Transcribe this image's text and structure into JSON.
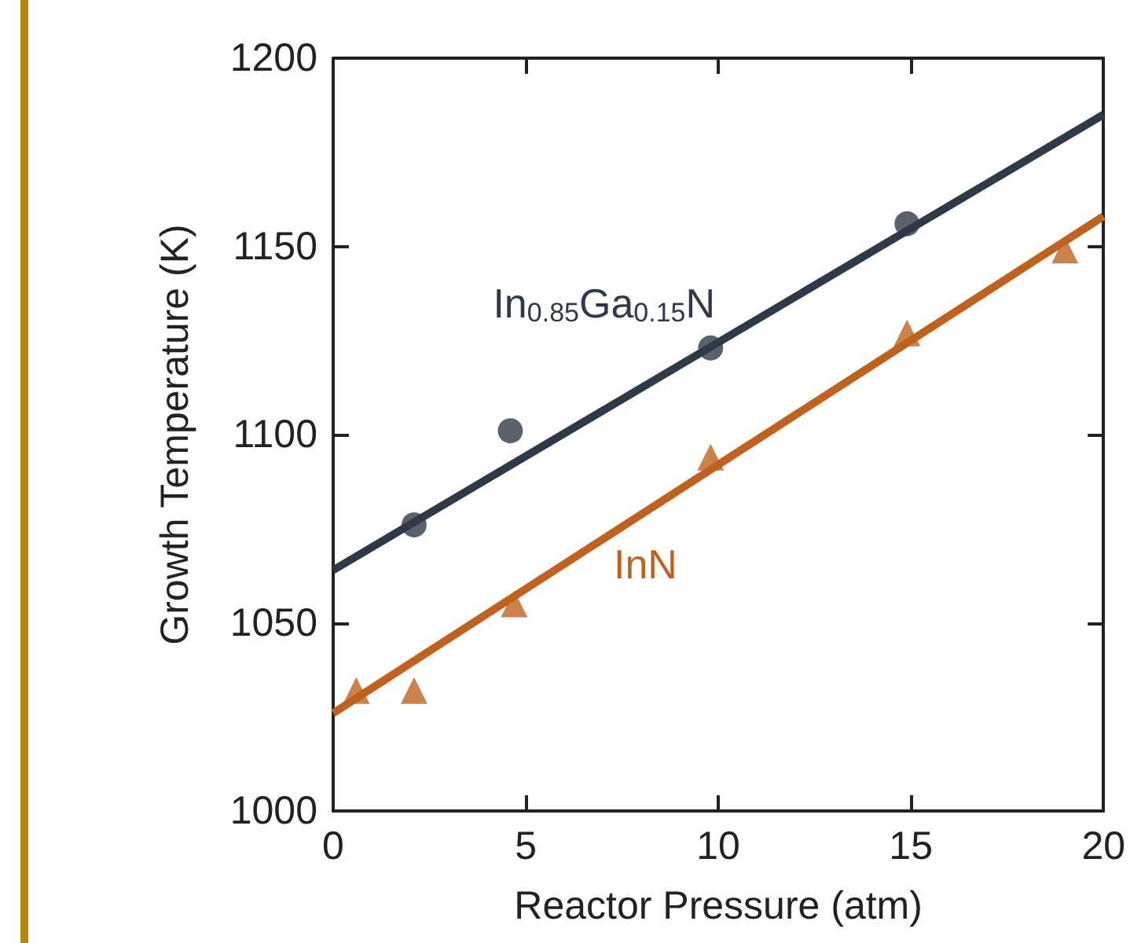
{
  "chart_data": {
    "type": "scatter",
    "xlabel": "Reactor Pressure (atm)",
    "ylabel": "Growth Temperature (K)",
    "xlim": [
      0,
      20
    ],
    "xticks": [
      0,
      5,
      10,
      15,
      20
    ],
    "ylim": [
      1000,
      1200
    ],
    "yticks": [
      1000,
      1050,
      1100,
      1150,
      1200
    ],
    "grid": false,
    "legend": false,
    "series": [
      {
        "name": "In$_{0.85}$Ga$_{0.15}$N",
        "marker": "circle",
        "color": "#2f3a48",
        "x": [
          2.1,
          4.6,
          9.8,
          14.9
        ],
        "values": [
          1076,
          1101,
          1123,
          1156
        ]
      },
      {
        "type": "line",
        "marker": "none",
        "color": "#2f3a48",
        "x": [
          0,
          20
        ],
        "values": [
          1064,
          1185
        ]
      },
      {
        "name": "InN",
        "marker": "triangle",
        "color": "#c0621e",
        "x": [
          0.6,
          2.1,
          4.7,
          9.8,
          14.9,
          19
        ],
        "values": [
          1032,
          1032,
          1055,
          1094,
          1127,
          1149
        ]
      },
      {
        "type": "line",
        "marker": "none",
        "color": "#c0621e",
        "x": [
          0,
          20
        ],
        "values": [
          1026,
          1158
        ]
      }
    ]
  }
}
